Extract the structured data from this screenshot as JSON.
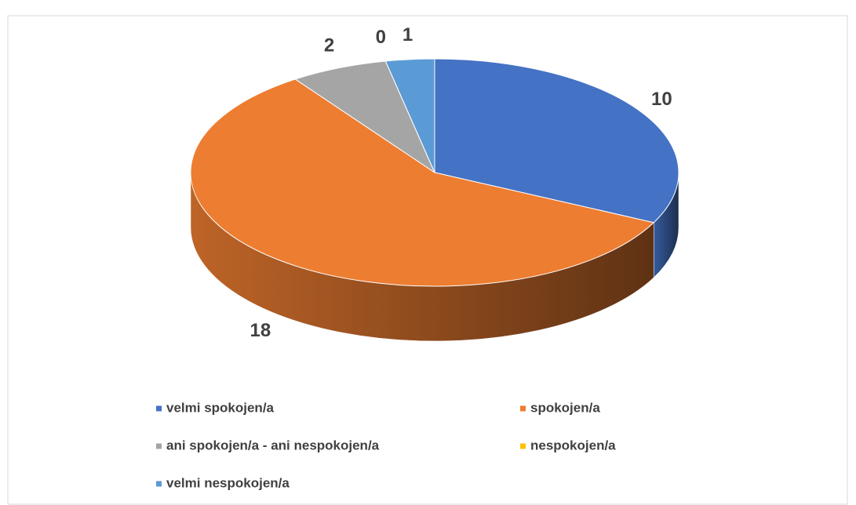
{
  "chart_data": {
    "type": "pie3d",
    "categories": [
      "velmi spokojen/a",
      "spokojen/a",
      "ani spokojen/a - ani nespokojen/a",
      "nespokojen/a",
      "velmi nespokojen/a"
    ],
    "values": [
      10,
      18,
      2,
      0,
      1
    ],
    "colors": [
      "#4472c4",
      "#ed7d31",
      "#a5a5a5",
      "#ffc000",
      "#5b9bd5"
    ],
    "legend": "bottom"
  }
}
